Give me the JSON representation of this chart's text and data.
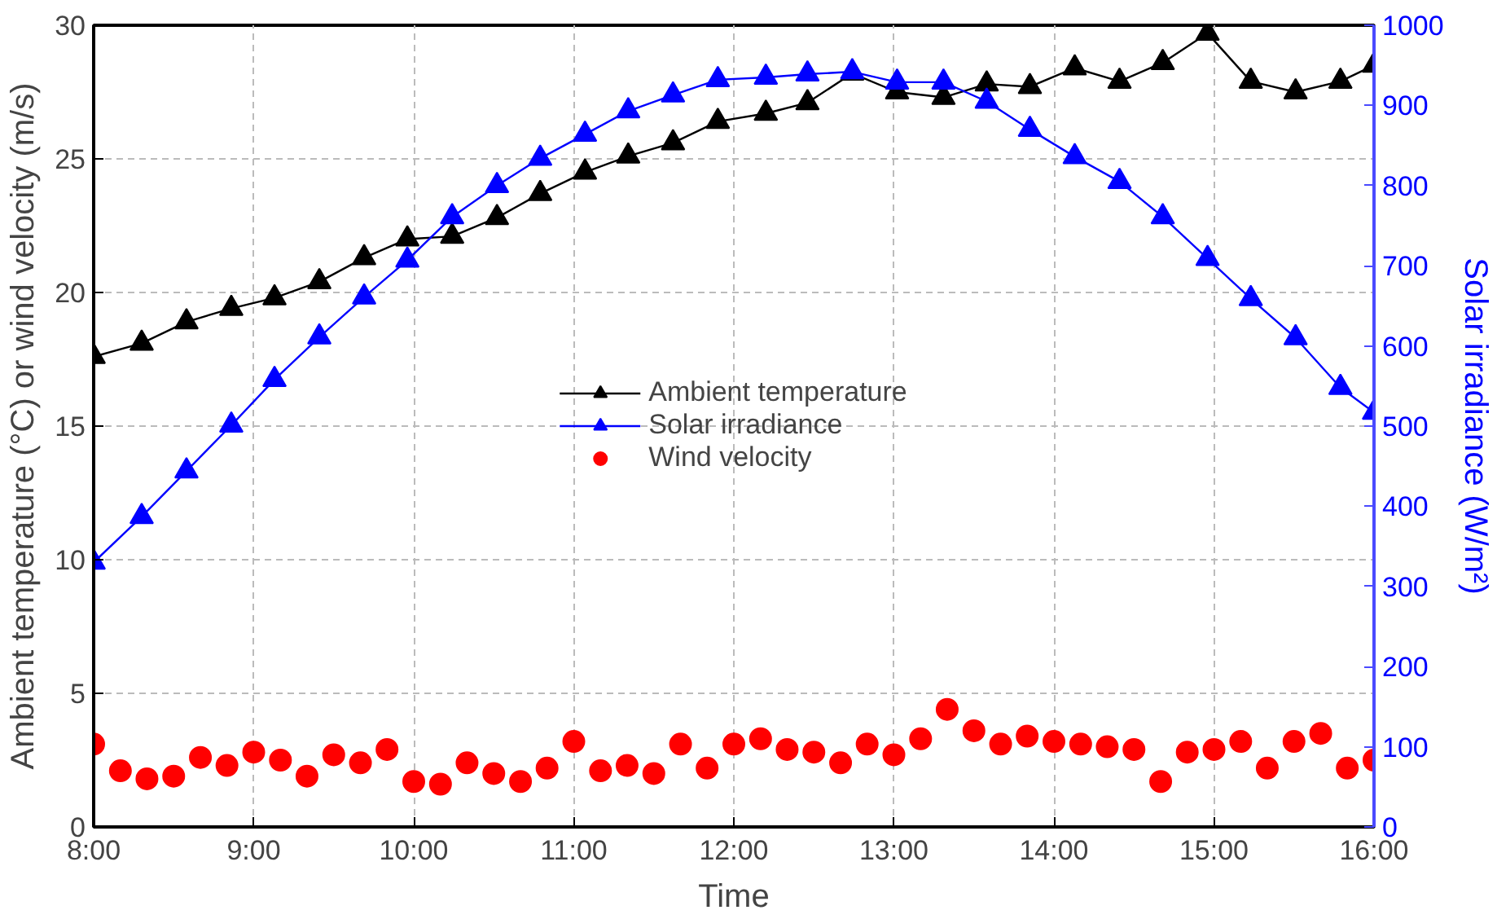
{
  "chart_data": {
    "type": "line",
    "xlabel": "Time",
    "ylabel": "Ambient temperature (°C) or wind velocity (m/s)",
    "y2label": "Solar irradiance (W/m²)",
    "xlim": [
      8,
      16
    ],
    "xticks": [
      {
        "value": 8,
        "label": "8:00"
      },
      {
        "value": 9,
        "label": "9:00"
      },
      {
        "value": 10,
        "label": "10:00"
      },
      {
        "value": 11,
        "label": "11:00"
      },
      {
        "value": 12,
        "label": "12:00"
      },
      {
        "value": 13,
        "label": "13:00"
      },
      {
        "value": 14,
        "label": "14:00"
      },
      {
        "value": 15,
        "label": "15:00"
      },
      {
        "value": 16,
        "label": "16:00"
      }
    ],
    "ylim": [
      0,
      30
    ],
    "yticks": [
      0,
      5,
      10,
      15,
      20,
      25,
      30
    ],
    "y2lim": [
      0,
      1000
    ],
    "y2ticks": [
      0,
      100,
      200,
      300,
      400,
      500,
      600,
      700,
      800,
      900,
      1000
    ],
    "grid": true,
    "legend": "center",
    "series": [
      {
        "name": "Ambient temperature",
        "color": "#000000",
        "marker": "triangle",
        "x": [
          8.0,
          8.3,
          8.58,
          8.86,
          9.13,
          9.41,
          9.69,
          9.96,
          10.24,
          10.52,
          10.79,
          11.07,
          11.34,
          11.62,
          11.9,
          12.2,
          12.46,
          12.74,
          13.02,
          13.31,
          13.58,
          13.85,
          14.13,
          14.41,
          14.68,
          14.96,
          15.23,
          15.51,
          15.79,
          16.0
        ],
        "values": [
          17.6,
          18.1,
          18.9,
          19.4,
          19.8,
          20.4,
          21.3,
          22.0,
          22.1,
          22.8,
          23.7,
          24.5,
          25.1,
          25.6,
          26.4,
          26.7,
          27.1,
          28.2,
          27.5,
          27.3,
          27.8,
          27.7,
          28.4,
          27.9,
          28.6,
          29.7,
          27.9,
          27.5,
          27.9,
          28.5
        ]
      },
      {
        "name": "Solar irradiance",
        "color": "#0000ff",
        "marker": "triangle",
        "axis": "y2",
        "x": [
          8.0,
          8.3,
          8.58,
          8.86,
          9.13,
          9.41,
          9.69,
          9.96,
          10.24,
          10.52,
          10.79,
          11.07,
          11.34,
          11.62,
          11.9,
          12.2,
          12.46,
          12.74,
          13.02,
          13.31,
          13.58,
          13.85,
          14.13,
          14.41,
          14.68,
          14.96,
          15.23,
          15.51,
          15.79,
          16.0
        ],
        "values": [
          330,
          387,
          444,
          501,
          558,
          611,
          661,
          707,
          761,
          800,
          834,
          864,
          893,
          913,
          932,
          935,
          939,
          942,
          929,
          929,
          905,
          870,
          836,
          805,
          761,
          709,
          659,
          610,
          548,
          517
        ]
      },
      {
        "name": "Wind velocity",
        "type": "scatter",
        "color": "#ff0000",
        "marker": "circle",
        "x": [
          8.0,
          8.167,
          8.333,
          8.5,
          8.667,
          8.833,
          9.0,
          9.167,
          9.333,
          9.5,
          9.667,
          9.833,
          10.0,
          10.167,
          10.333,
          10.5,
          10.667,
          10.833,
          11.0,
          11.167,
          11.333,
          11.5,
          11.667,
          11.833,
          12.0,
          12.167,
          12.333,
          12.5,
          12.667,
          12.833,
          13.0,
          13.167,
          13.333,
          13.5,
          13.667,
          13.833,
          14.0,
          14.167,
          14.333,
          14.5,
          14.667,
          14.833,
          15.0,
          15.167,
          15.333,
          15.5,
          15.667,
          15.833,
          16.0
        ],
        "values": [
          3.1,
          2.1,
          1.8,
          1.9,
          2.6,
          2.3,
          2.8,
          2.5,
          1.9,
          2.7,
          2.4,
          2.9,
          1.7,
          1.6,
          2.4,
          2.0,
          1.7,
          2.2,
          3.2,
          2.1,
          2.3,
          2.0,
          3.1,
          2.2,
          3.1,
          3.3,
          2.9,
          2.8,
          2.4,
          3.1,
          2.7,
          3.3,
          4.4,
          3.6,
          3.1,
          3.4,
          3.2,
          3.1,
          3.0,
          2.9,
          1.7,
          2.8,
          2.9,
          3.2,
          2.2,
          3.2,
          3.5,
          2.2,
          2.5
        ]
      }
    ]
  }
}
